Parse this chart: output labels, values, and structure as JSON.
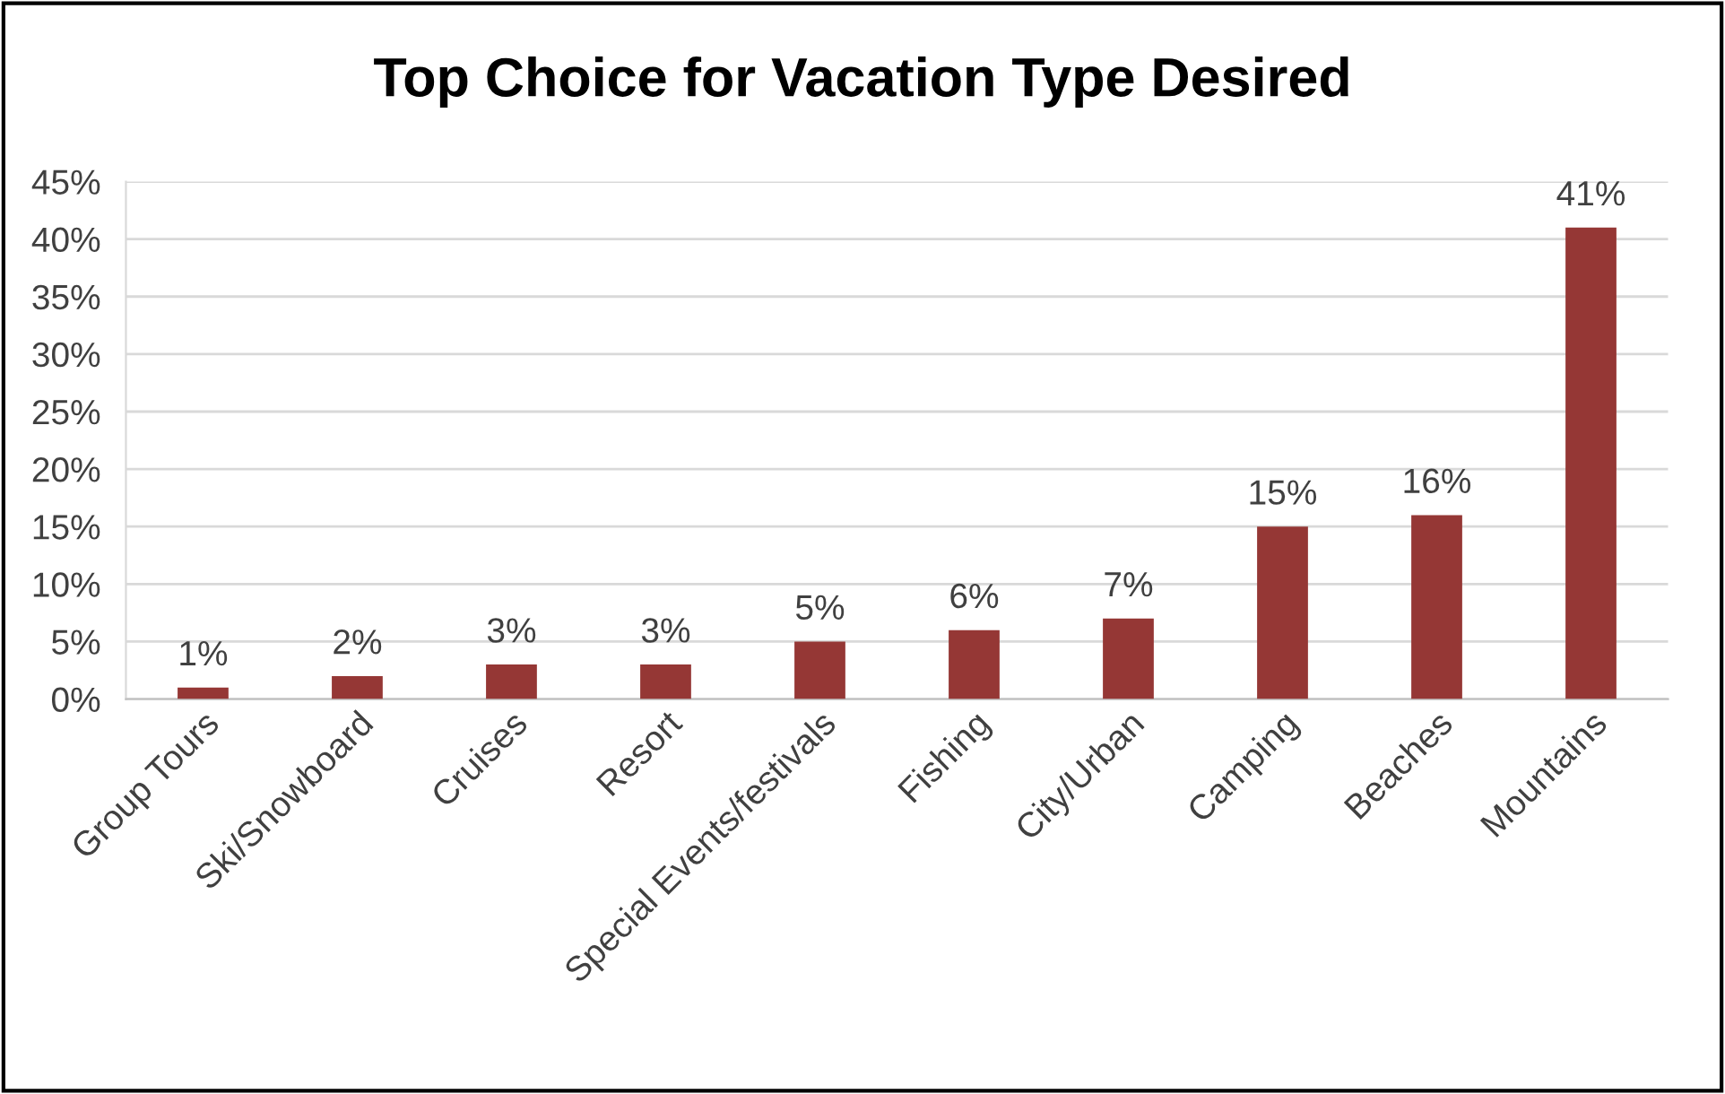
{
  "chart_data": {
    "type": "bar",
    "title": "Top Choice for Vacation Type Desired",
    "categories": [
      "Group Tours",
      "Ski/Snowboard",
      "Cruises",
      "Resort",
      "Special Events/festivals",
      "Fishing",
      "City/Urban",
      "Camping",
      "Beaches",
      "Mountains"
    ],
    "values": [
      1,
      2,
      3,
      3,
      5,
      6,
      7,
      15,
      16,
      41
    ],
    "value_labels": [
      "1%",
      "2%",
      "3%",
      "3%",
      "5%",
      "6%",
      "7%",
      "15%",
      "16%",
      "41%"
    ],
    "color": "#953735",
    "ylim": [
      0,
      45
    ],
    "yticks": [
      {
        "value": 0,
        "label": "0%"
      },
      {
        "value": 5,
        "label": "5%"
      },
      {
        "value": 10,
        "label": "10%"
      },
      {
        "value": 15,
        "label": "15%"
      },
      {
        "value": 20,
        "label": "20%"
      },
      {
        "value": 25,
        "label": "25%"
      },
      {
        "value": 30,
        "label": "30%"
      },
      {
        "value": 35,
        "label": "35%"
      },
      {
        "value": 40,
        "label": "40%"
      },
      {
        "value": 45,
        "label": "45%"
      }
    ],
    "grid": "y",
    "legend": false
  }
}
